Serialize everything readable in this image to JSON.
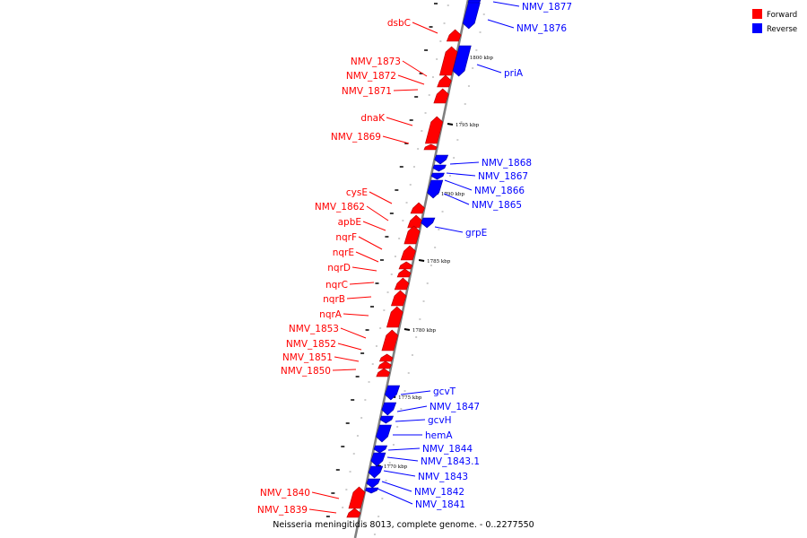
{
  "caption": "Neisseria meningitidis 8013, complete genome. - 0..2277550",
  "legend": [
    {
      "label": "Forward",
      "color": "#ff0000"
    },
    {
      "label": "Reverse",
      "color": "#0000ff"
    }
  ],
  "colors": {
    "forward": "#ff0000",
    "reverse": "#0000ff",
    "backbone": "#808080"
  },
  "tick_labels": [
    "1800 kbp",
    "1795 kbp",
    "1790 kbp",
    "1785 kbp",
    "1780 kbp",
    "1775 kbp",
    "1770 kbp"
  ],
  "genes": [
    {
      "name": "NMV_1877",
      "strand": "reverse"
    },
    {
      "name": "NMV_1876",
      "strand": "reverse"
    },
    {
      "name": "dsbC",
      "strand": "forward"
    },
    {
      "name": "NMV_1873",
      "strand": "forward"
    },
    {
      "name": "NMV_1872",
      "strand": "forward"
    },
    {
      "name": "NMV_1871",
      "strand": "forward"
    },
    {
      "name": "priA",
      "strand": "reverse"
    },
    {
      "name": "dnaK",
      "strand": "forward"
    },
    {
      "name": "NMV_1869",
      "strand": "forward"
    },
    {
      "name": "NMV_1868",
      "strand": "reverse"
    },
    {
      "name": "NMV_1867",
      "strand": "reverse"
    },
    {
      "name": "NMV_1866",
      "strand": "reverse"
    },
    {
      "name": "NMV_1865",
      "strand": "reverse"
    },
    {
      "name": "cysE",
      "strand": "forward"
    },
    {
      "name": "NMV_1862",
      "strand": "forward"
    },
    {
      "name": "apbE",
      "strand": "forward"
    },
    {
      "name": "grpE",
      "strand": "reverse"
    },
    {
      "name": "nqrF",
      "strand": "forward"
    },
    {
      "name": "nqrE",
      "strand": "forward"
    },
    {
      "name": "nqrD",
      "strand": "forward"
    },
    {
      "name": "nqrC",
      "strand": "forward"
    },
    {
      "name": "nqrB",
      "strand": "forward"
    },
    {
      "name": "nqrA",
      "strand": "forward"
    },
    {
      "name": "NMV_1853",
      "strand": "forward"
    },
    {
      "name": "NMV_1852",
      "strand": "forward"
    },
    {
      "name": "NMV_1851",
      "strand": "forward"
    },
    {
      "name": "NMV_1850",
      "strand": "forward"
    },
    {
      "name": "gcvT",
      "strand": "reverse"
    },
    {
      "name": "NMV_1847",
      "strand": "reverse"
    },
    {
      "name": "gcvH",
      "strand": "reverse"
    },
    {
      "name": "hemA",
      "strand": "reverse"
    },
    {
      "name": "NMV_1844",
      "strand": "reverse"
    },
    {
      "name": "NMV_1843.1",
      "strand": "reverse"
    },
    {
      "name": "NMV_1843",
      "strand": "reverse"
    },
    {
      "name": "NMV_1842",
      "strand": "reverse"
    },
    {
      "name": "NMV_1841",
      "strand": "reverse"
    },
    {
      "name": "NMV_1840",
      "strand": "forward"
    },
    {
      "name": "NMV_1839",
      "strand": "forward"
    }
  ]
}
